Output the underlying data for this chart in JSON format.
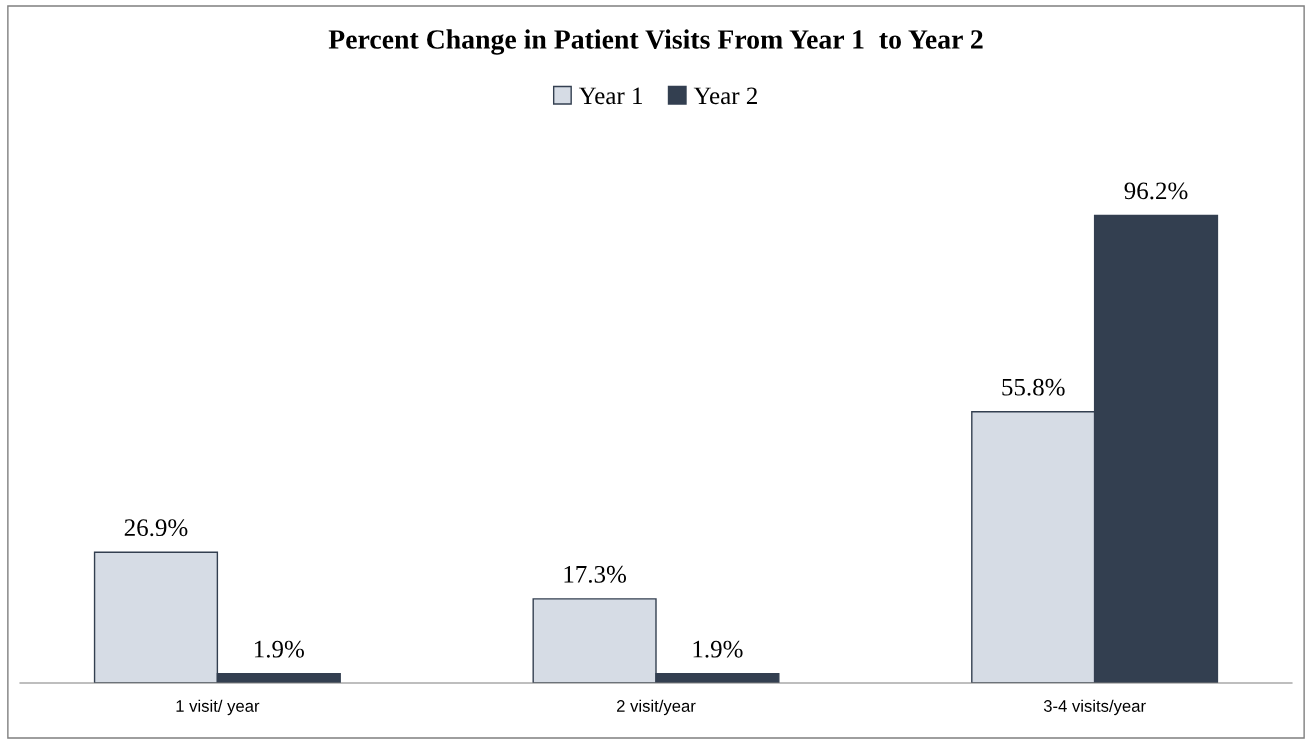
{
  "chart_data": {
    "type": "bar",
    "title": "Percent Change in Patient Visits From Year 1  to Year 2",
    "categories": [
      "1 visit/ year",
      "2 visit/year",
      "3-4 visits/year"
    ],
    "series": [
      {
        "name": "Year 1",
        "color": "#d6dce5",
        "values": [
          26.9,
          17.3,
          55.8
        ],
        "value_labels": [
          "26.9%",
          "17.3%",
          "55.8%"
        ]
      },
      {
        "name": "Year 2",
        "color": "#333f50",
        "values": [
          1.9,
          1.9,
          96.2
        ],
        "value_labels": [
          "1.9%",
          "1.9%",
          "96.2%"
        ]
      }
    ],
    "legend": "top",
    "grid": false
  }
}
